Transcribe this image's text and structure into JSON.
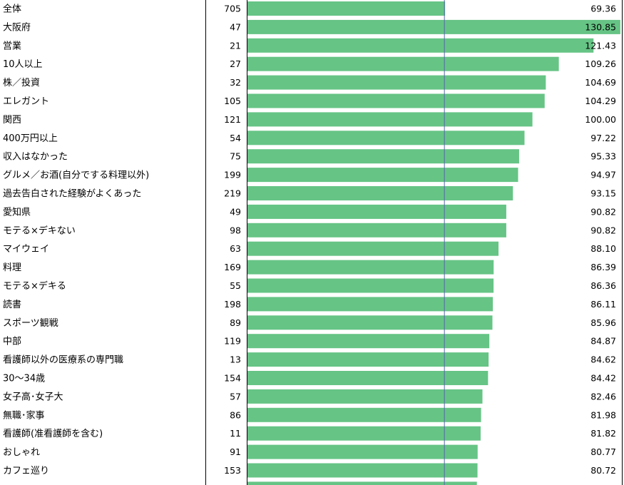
{
  "chart_data": {
    "type": "bar",
    "orientation": "horizontal",
    "reference_value": 69.36,
    "colors": {
      "bar": "#66c485",
      "reference_line": "#5566aa",
      "grid": "#000000"
    },
    "rows": [
      {
        "label": "全体",
        "count": "705",
        "score": "69.36"
      },
      {
        "label": "大阪府",
        "count": "47",
        "score": "130.85"
      },
      {
        "label": "営業",
        "count": "21",
        "score": "121.43"
      },
      {
        "label": "10人以上",
        "count": "27",
        "score": "109.26"
      },
      {
        "label": "株／投資",
        "count": "32",
        "score": "104.69"
      },
      {
        "label": "エレガント",
        "count": "105",
        "score": "104.29"
      },
      {
        "label": "関西",
        "count": "121",
        "score": "100.00"
      },
      {
        "label": "400万円以上",
        "count": "54",
        "score": "97.22"
      },
      {
        "label": "収入はなかった",
        "count": "75",
        "score": "95.33"
      },
      {
        "label": "グルメ／お酒(自分でする料理以外)",
        "count": "199",
        "score": "94.97"
      },
      {
        "label": "過去告白された経験がよくあった",
        "count": "219",
        "score": "93.15"
      },
      {
        "label": "愛知県",
        "count": "49",
        "score": "90.82"
      },
      {
        "label": "モテる×デキない",
        "count": "98",
        "score": "90.82"
      },
      {
        "label": "マイウェイ",
        "count": "63",
        "score": "88.10"
      },
      {
        "label": "料理",
        "count": "169",
        "score": "86.39"
      },
      {
        "label": "モテる×デキる",
        "count": "55",
        "score": "86.36"
      },
      {
        "label": "読書",
        "count": "198",
        "score": "86.11"
      },
      {
        "label": "スポーツ観戦",
        "count": "89",
        "score": "85.96"
      },
      {
        "label": "中部",
        "count": "119",
        "score": "84.87"
      },
      {
        "label": "看護師以外の医療系の専門職",
        "count": "13",
        "score": "84.62"
      },
      {
        "label": "30～34歳",
        "count": "154",
        "score": "84.42"
      },
      {
        "label": "女子高･女子大",
        "count": "57",
        "score": "82.46"
      },
      {
        "label": "無職･家事",
        "count": "86",
        "score": "81.98"
      },
      {
        "label": "看護師(准看護師を含む)",
        "count": "11",
        "score": "81.82"
      },
      {
        "label": "おしゃれ",
        "count": "91",
        "score": "80.77"
      },
      {
        "label": "カフェ巡り",
        "count": "153",
        "score": "80.72"
      }
    ]
  }
}
